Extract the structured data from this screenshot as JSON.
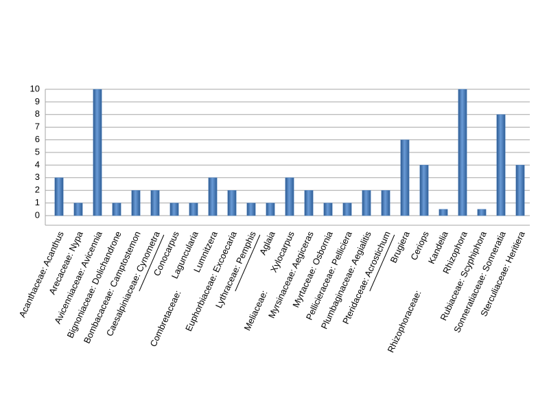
{
  "chart_data": {
    "type": "bar",
    "categories": [
      "Acanthaceae: Acanthus",
      "Arecaceae: Nypa",
      "Avicenniaceae: Avicennia",
      "Bignoniaceae: Dolichandrone",
      "Bombacaceae: Camptostemon",
      "Caesalpiniaceae: Cynometra",
      "Conocarpus",
      "Laguncularia",
      "Lumnitzera",
      "Euphorbiaceae: Excoecaria",
      "Lythraceae: Pemphis",
      "Aglaia",
      "Xylocarpus",
      "Myrsinaceae: Aegiceras",
      "Myrtaceae: Osbornia",
      "Pellicieraceae: Pelliciera",
      "Plumbaginaceae: Aegialitis",
      "Pteridaceae: Acrostichum",
      "Brugiera",
      "Ceriops",
      "Kandelia",
      "Rhizophora",
      "Rubiaceae: Scyphiphora",
      "Sonneratiaceae: Sonneratia",
      "Sterculiaceae: Heritiera"
    ],
    "values": [
      3,
      1,
      10,
      1,
      2,
      2,
      1,
      1,
      3,
      2,
      1,
      1,
      3,
      2,
      1,
      1,
      2,
      2,
      6,
      4,
      0.5,
      10,
      0.5,
      8,
      4
    ],
    "annotations": [
      "Combretaceae:",
      "Meliaceae:",
      "Rhizophoraceae:"
    ],
    "color": "#4f81bd",
    "ylim": [
      0,
      10
    ],
    "yticks": [
      0,
      1,
      2,
      3,
      4,
      5,
      6,
      7,
      8,
      9,
      10
    ],
    "grid": true
  }
}
